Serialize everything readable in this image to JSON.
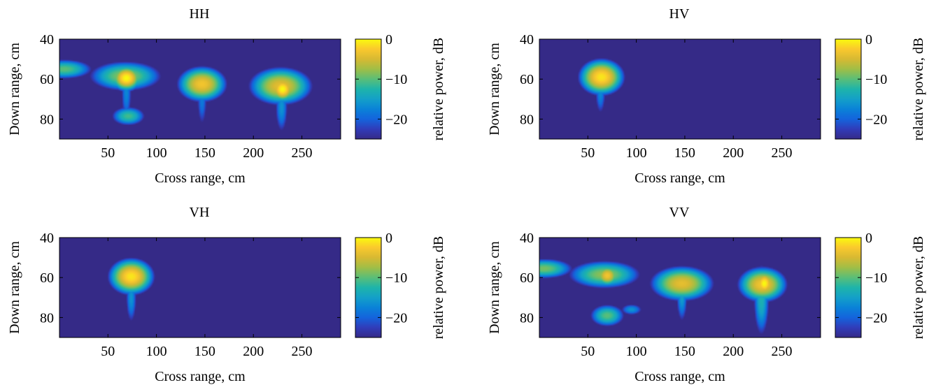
{
  "chart_data": [
    {
      "type": "heatmap",
      "title": "HH",
      "xlabel": "Cross range, cm",
      "ylabel": "Down range, cm",
      "xlim": [
        0,
        290
      ],
      "ylim": [
        90,
        40
      ],
      "xticks": [
        50,
        100,
        150,
        200,
        250
      ],
      "yticks": [
        40,
        60,
        80
      ],
      "colorbar": {
        "label": "relative power, dB",
        "range": [
          -25,
          0
        ],
        "ticks": [
          0,
          -10,
          -20
        ]
      },
      "hotspots": [
        {
          "x": 5,
          "y": 55,
          "sx": 13,
          "sy": 2.2,
          "peak": -10
        },
        {
          "x": 68,
          "y": 58.5,
          "sx": 16,
          "sy": 3.2,
          "peak": -8
        },
        {
          "x": 69,
          "y": 59.5,
          "sx": 6,
          "sy": 2.5,
          "peak": 0
        },
        {
          "x": 69,
          "y": 67,
          "sx": 3,
          "sy": 8,
          "peak": -17
        },
        {
          "x": 71,
          "y": 78.5,
          "sx": 8,
          "sy": 2.2,
          "peak": -11
        },
        {
          "x": 147,
          "y": 62.5,
          "sx": 10,
          "sy": 3.5,
          "peak": -3
        },
        {
          "x": 147,
          "y": 70,
          "sx": 3,
          "sy": 8,
          "peak": -18
        },
        {
          "x": 228,
          "y": 63.5,
          "sx": 13,
          "sy": 3.8,
          "peak": -4
        },
        {
          "x": 230,
          "y": 65,
          "sx": 5,
          "sy": 2.5,
          "peak": 0
        },
        {
          "x": 229,
          "y": 74,
          "sx": 3.5,
          "sy": 7,
          "peak": -16
        }
      ]
    },
    {
      "type": "heatmap",
      "title": "HV",
      "xlabel": "Cross range, cm",
      "ylabel": "Down range, cm",
      "xlim": [
        0,
        290
      ],
      "ylim": [
        90,
        40
      ],
      "xticks": [
        50,
        100,
        150,
        200,
        250
      ],
      "yticks": [
        40,
        60,
        80
      ],
      "colorbar": {
        "label": "relative power, dB",
        "range": [
          -25,
          0
        ],
        "ticks": [
          0,
          -10,
          -20
        ]
      },
      "hotspots": [
        {
          "x": 64,
          "y": 59,
          "sx": 9,
          "sy": 3.5,
          "peak": -1
        },
        {
          "x": 63,
          "y": 67,
          "sx": 3,
          "sy": 6,
          "peak": -17
        }
      ]
    },
    {
      "type": "heatmap",
      "title": "VH",
      "xlabel": "Cross range, cm",
      "ylabel": "Down range, cm",
      "xlim": [
        0,
        290
      ],
      "ylim": [
        90,
        40
      ],
      "xticks": [
        50,
        100,
        150,
        200,
        250
      ],
      "yticks": [
        40,
        60,
        80
      ],
      "colorbar": {
        "label": "relative power, dB",
        "range": [
          -25,
          0
        ],
        "ticks": [
          0,
          -10,
          -20
        ]
      },
      "hotspots": [
        {
          "x": 74,
          "y": 59.5,
          "sx": 9,
          "sy": 3.5,
          "peak": -1
        },
        {
          "x": 74,
          "y": 70,
          "sx": 3,
          "sy": 7,
          "peak": -16
        }
      ]
    },
    {
      "type": "heatmap",
      "title": "VV",
      "xlabel": "Cross range, cm",
      "ylabel": "Down range, cm",
      "xlim": [
        0,
        290
      ],
      "ylim": [
        90,
        40
      ],
      "xticks": [
        50,
        100,
        150,
        200,
        250
      ],
      "yticks": [
        40,
        60,
        80
      ],
      "colorbar": {
        "label": "relative power, dB",
        "range": [
          -25,
          0
        ],
        "ticks": [
          0,
          -10,
          -20
        ]
      },
      "hotspots": [
        {
          "x": 5,
          "y": 55.5,
          "sx": 13,
          "sy": 2.2,
          "peak": -9
        },
        {
          "x": 67,
          "y": 58.5,
          "sx": 16,
          "sy": 3.0,
          "peak": -8
        },
        {
          "x": 70,
          "y": 59,
          "sx": 5,
          "sy": 2.2,
          "peak": -3
        },
        {
          "x": 70,
          "y": 79,
          "sx": 8,
          "sy": 2.5,
          "peak": -10
        },
        {
          "x": 95,
          "y": 76,
          "sx": 6,
          "sy": 1.5,
          "peak": -16
        },
        {
          "x": 147,
          "y": 63,
          "sx": 13,
          "sy": 3.5,
          "peak": -4
        },
        {
          "x": 147,
          "y": 69,
          "sx": 3,
          "sy": 7,
          "peak": -15
        },
        {
          "x": 230,
          "y": 63.5,
          "sx": 10,
          "sy": 3.5,
          "peak": -3
        },
        {
          "x": 232,
          "y": 63,
          "sx": 4,
          "sy": 2.5,
          "peak": 0
        },
        {
          "x": 229,
          "y": 71,
          "sx": 4,
          "sy": 9,
          "peak": -13
        }
      ]
    }
  ]
}
